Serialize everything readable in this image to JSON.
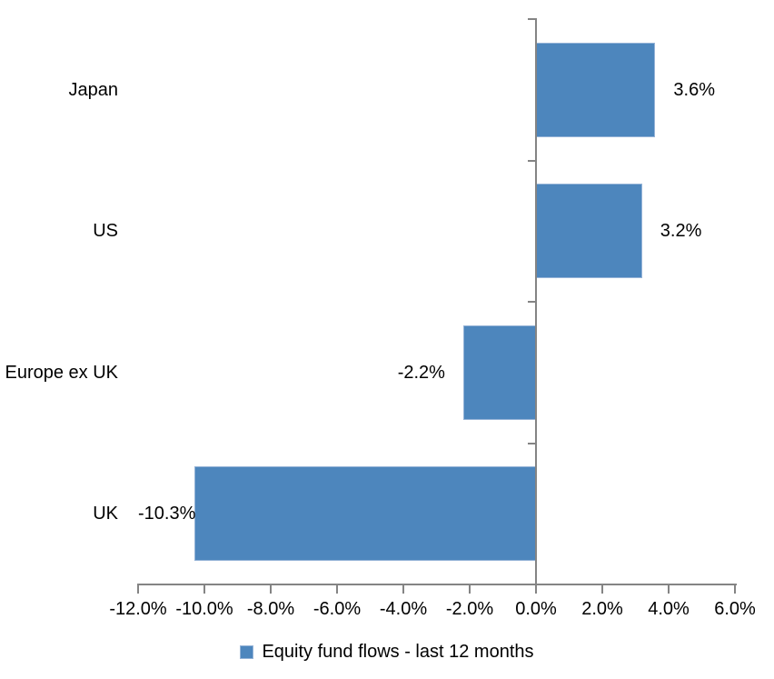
{
  "chart_data": {
    "type": "bar",
    "orientation": "horizontal",
    "title": "",
    "xlabel": "",
    "ylabel": "",
    "grid": false,
    "categories": [
      "Japan",
      "US",
      "Europe ex UK",
      "UK"
    ],
    "series": [
      {
        "name": "Equity fund flows - last 12 months",
        "values": [
          3.6,
          3.2,
          -2.2,
          -10.3
        ],
        "data_labels": [
          "3.6%",
          "3.2%",
          "-2.2%",
          "-10.3%"
        ]
      }
    ],
    "x_axis": {
      "min": -12,
      "max": 6,
      "step": 2,
      "tick_labels": [
        "-12.0%",
        "-10.0%",
        "-8.0%",
        "-6.0%",
        "-4.0%",
        "-2.0%",
        "0.0%",
        "2.0%",
        "4.0%",
        "6.0%"
      ]
    },
    "legend": {
      "position": "bottom",
      "entries": [
        {
          "label": "Equity fund flows - last 12 months",
          "color": "#4d86bd"
        }
      ]
    },
    "colors": {
      "bar_fill": "#4d86bd",
      "bar_border": "#95b3d7",
      "axis_line": "#848484",
      "text": "#000000",
      "background": "#ffffff"
    }
  }
}
